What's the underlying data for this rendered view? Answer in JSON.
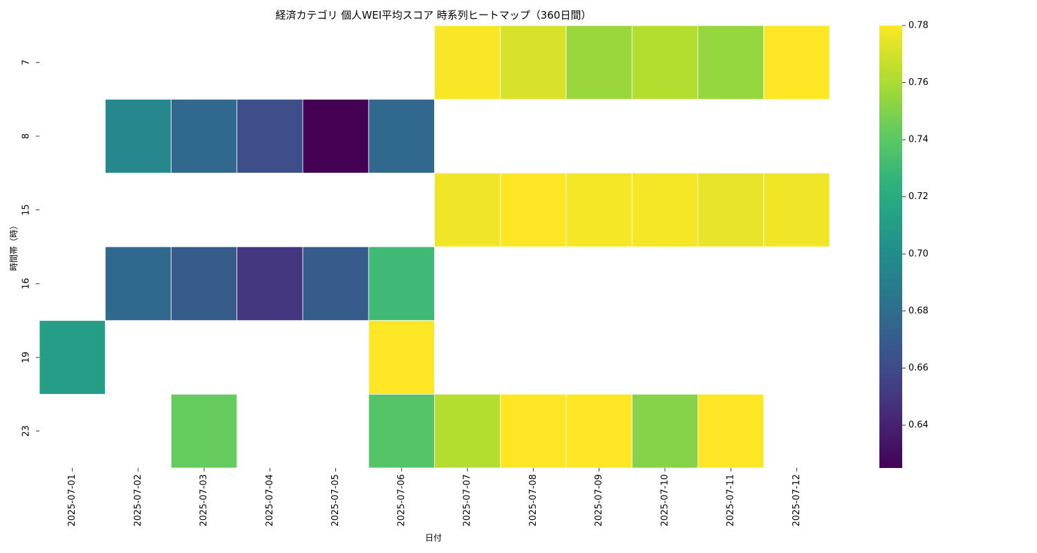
{
  "chart_data": {
    "type": "heatmap",
    "title": "経済カテゴリ 個人WEI平均スコア 時系列ヒートマップ（360日間）",
    "xlabel": "日付",
    "ylabel": "時間帯（時）",
    "x": [
      "2025-07-01",
      "2025-07-02",
      "2025-07-03",
      "2025-07-04",
      "2025-07-05",
      "2025-07-06",
      "2025-07-07",
      "2025-07-08",
      "2025-07-09",
      "2025-07-10",
      "2025-07-11",
      "2025-07-12"
    ],
    "y": [
      "7",
      "8",
      "15",
      "16",
      "19",
      "23"
    ],
    "values": [
      [
        null,
        null,
        null,
        null,
        null,
        null,
        0.779,
        0.771,
        0.756,
        0.762,
        0.755,
        0.78
      ],
      [
        null,
        0.697,
        0.677,
        0.662,
        0.625,
        0.677,
        null,
        null,
        null,
        null,
        null,
        null
      ],
      [
        null,
        null,
        null,
        null,
        null,
        null,
        0.777,
        0.78,
        0.778,
        0.778,
        0.775,
        0.777
      ],
      [
        null,
        0.677,
        0.67,
        0.649,
        0.67,
        0.73,
        null,
        null,
        null,
        null,
        null,
        null
      ],
      [
        0.711,
        null,
        null,
        null,
        null,
        0.78,
        null,
        null,
        null,
        null,
        null,
        null
      ],
      [
        null,
        null,
        0.743,
        null,
        null,
        0.738,
        0.762,
        0.78,
        0.78,
        0.751,
        0.78,
        null
      ]
    ],
    "colormap": "viridis",
    "colorbar": {
      "vmin": 0.625,
      "vmax": 0.78,
      "ticks": [
        "0.64",
        "0.66",
        "0.68",
        "0.70",
        "0.72",
        "0.74",
        "0.76",
        "0.78"
      ]
    }
  }
}
